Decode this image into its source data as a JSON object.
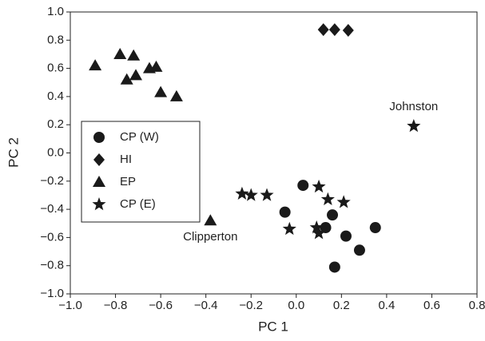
{
  "chart_data": {
    "type": "scatter",
    "x_label": "PC 1",
    "y_label": "PC 2",
    "xlim": [
      -1.0,
      0.8
    ],
    "ylim": [
      -1.0,
      1.0
    ],
    "xticks": [
      {
        "value": -1.0,
        "label": "−1.0"
      },
      {
        "value": -0.8,
        "label": "−0.8"
      },
      {
        "value": -0.6,
        "label": "−0.6"
      },
      {
        "value": -0.4,
        "label": "−0.4"
      },
      {
        "value": -0.2,
        "label": "−0.2"
      },
      {
        "value": 0.0,
        "label": "0.0"
      },
      {
        "value": 0.2,
        "label": "0.2"
      },
      {
        "value": 0.4,
        "label": "0.4"
      },
      {
        "value": 0.6,
        "label": "0.6"
      },
      {
        "value": 0.8,
        "label": "0.8"
      }
    ],
    "yticks": [
      {
        "value": -1.0,
        "label": "−1.0"
      },
      {
        "value": -0.8,
        "label": "−0.8"
      },
      {
        "value": -0.6,
        "label": "−0.6"
      },
      {
        "value": -0.4,
        "label": "−0.4"
      },
      {
        "value": -0.2,
        "label": "−0.2"
      },
      {
        "value": 0.0,
        "label": "0.0"
      },
      {
        "value": 0.2,
        "label": "0.2"
      },
      {
        "value": 0.4,
        "label": "0.4"
      },
      {
        "value": 0.6,
        "label": "0.6"
      },
      {
        "value": 0.8,
        "label": "0.8"
      },
      {
        "value": 1.0,
        "label": "1.0"
      }
    ],
    "series": [
      {
        "name": "CP (W)",
        "marker": "circle",
        "color": "#1a1a1a",
        "x": [
          0.03,
          -0.05,
          0.16,
          0.13,
          0.22,
          0.35,
          0.28,
          0.17
        ],
        "y": [
          -0.23,
          -0.42,
          -0.44,
          -0.53,
          -0.59,
          -0.53,
          -0.69,
          -0.81
        ]
      },
      {
        "name": "HI",
        "marker": "diamond",
        "color": "#1a1a1a",
        "x": [
          0.12,
          0.17,
          0.23
        ],
        "y": [
          0.875,
          0.875,
          0.87
        ]
      },
      {
        "name": "EP",
        "marker": "triangle",
        "color": "#1a1a1a",
        "x": [
          -0.89,
          -0.78,
          -0.72,
          -0.75,
          -0.71,
          -0.65,
          -0.62,
          -0.6,
          -0.53,
          -0.38
        ],
        "y": [
          0.62,
          0.7,
          0.69,
          0.52,
          0.55,
          0.6,
          0.61,
          0.43,
          0.4,
          -0.48
        ],
        "point_labels": [
          null,
          null,
          null,
          null,
          null,
          null,
          null,
          null,
          null,
          "Clipperton"
        ]
      },
      {
        "name": "CP (E)",
        "marker": "star",
        "color": "#1a1a1a",
        "x": [
          -0.24,
          -0.2,
          -0.13,
          -0.03,
          0.1,
          0.14,
          0.21,
          0.09,
          0.1,
          0.52
        ],
        "y": [
          -0.29,
          -0.3,
          -0.3,
          -0.54,
          -0.24,
          -0.33,
          -0.35,
          -0.53,
          -0.57,
          0.19
        ],
        "point_labels": [
          null,
          null,
          null,
          null,
          null,
          null,
          null,
          null,
          null,
          "Johnston"
        ]
      }
    ],
    "legend": "left"
  }
}
